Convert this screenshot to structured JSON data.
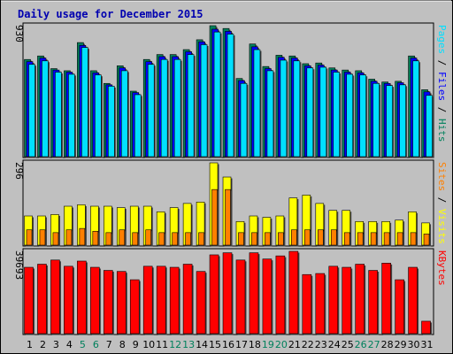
{
  "colors": {
    "background": "#c0c0c0",
    "panel": "#c0c0c0",
    "hits": "#00805c",
    "files": "#0000ff",
    "pages": "#00e0ff",
    "visits": "#ffff00",
    "sites": "#ff8000",
    "kbytes": "#ff0000",
    "weekday_label": "#000000",
    "weekend_label": "#00805c"
  },
  "chart_data": {
    "type": "bar",
    "title": "Daily usage for December 2015",
    "categories": [
      "1",
      "2",
      "3",
      "4",
      "5",
      "6",
      "7",
      "8",
      "9",
      "10",
      "11",
      "12",
      "13",
      "14",
      "15",
      "16",
      "17",
      "18",
      "19",
      "20",
      "21",
      "22",
      "23",
      "24",
      "25",
      "26",
      "27",
      "28",
      "29",
      "30",
      "31"
    ],
    "weekend_days": [
      "5",
      "6",
      "12",
      "13",
      "19",
      "20",
      "26",
      "27"
    ],
    "panels": [
      {
        "id": "hits-files-pages",
        "max_label": "930",
        "max": 930,
        "legend": [
          "Pages",
          "Files",
          "Hits"
        ],
        "series": [
          {
            "name": "Hits",
            "values": [
              690,
              715,
              625,
              610,
              810,
              610,
              520,
              645,
              465,
              690,
              725,
              725,
              760,
              830,
              930,
              910,
              555,
              800,
              640,
              720,
              715,
              660,
              665,
              630,
              615,
              610,
              550,
              530,
              535,
              715,
              475
            ]
          },
          {
            "name": "Files",
            "values": [
              675,
              700,
              615,
              600,
              790,
              595,
              510,
              630,
              455,
              675,
              710,
              710,
              745,
              815,
              905,
              890,
              540,
              780,
              625,
              705,
              700,
              645,
              650,
              615,
              600,
              595,
              535,
              520,
              525,
              700,
              460
            ]
          },
          {
            "name": "Pages",
            "values": [
              655,
              680,
              600,
              585,
              775,
              580,
              500,
              610,
              440,
              655,
              690,
              690,
              725,
              795,
              885,
              870,
              520,
              760,
              610,
              685,
              680,
              630,
              635,
              600,
              585,
              580,
              520,
              505,
              510,
              680,
              435
            ]
          }
        ]
      },
      {
        "id": "visits-sites",
        "max_label": "296",
        "max": 296,
        "legend": [
          "Sites",
          "Visits"
        ],
        "series": [
          {
            "name": "Visits",
            "values": [
              105,
              105,
              110,
              140,
              145,
              140,
              140,
              135,
              140,
              140,
              120,
              135,
              150,
              155,
              296,
              245,
              85,
              105,
              100,
              105,
              170,
              180,
              150,
              125,
              125,
              85,
              85,
              85,
              90,
              120,
              80
            ]
          },
          {
            "name": "Sites",
            "values": [
              55,
              55,
              45,
              55,
              60,
              50,
              45,
              55,
              45,
              55,
              45,
              45,
              45,
              45,
              200,
              200,
              45,
              45,
              45,
              45,
              55,
              55,
              55,
              55,
              45,
              45,
              45,
              45,
              45,
              45,
              40
            ]
          }
        ]
      },
      {
        "id": "kbytes",
        "max_label": "39693",
        "max": 39693,
        "legend": [
          "KBytes"
        ],
        "series": [
          {
            "name": "KBytes",
            "values": [
              32000,
              33500,
              35500,
              32500,
              35000,
              32000,
              30500,
              30000,
              26000,
              32500,
              32500,
              32000,
              33500,
              30000,
              38000,
              39000,
              35500,
              39000,
              36000,
              37500,
              39693,
              28500,
              29000,
              32500,
              32000,
              33500,
              30500,
              34000,
              26000,
              32000,
              6000
            ]
          }
        ]
      }
    ]
  }
}
